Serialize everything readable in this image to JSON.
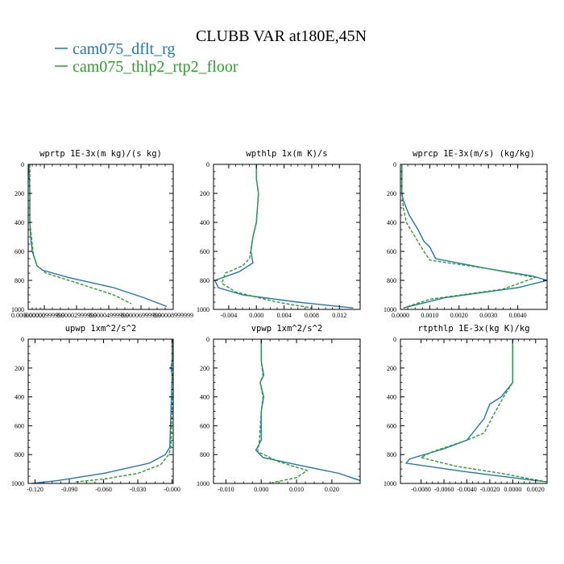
{
  "figure": {
    "title": "CLUBB VAR at180E,45N",
    "legend": [
      {
        "label": "cam075_dflt_rg",
        "color": "#1f77b4"
      },
      {
        "label": "cam075_thlp2_rtp2_floor",
        "color": "#2ca02c"
      }
    ]
  },
  "chart_data": [
    {
      "type": "line",
      "title": "wprtp  1E-3x(m kg)/(s kg)",
      "ylim": [
        1000,
        0
      ],
      "yticks": [
        "0",
        "200",
        "400",
        "600",
        "800",
        "1000"
      ],
      "xlim": [
        0,
        9e-05
      ],
      "xticks": [
        {
          "v": 0,
          "label": "0.000000000"
        },
        {
          "v": 1e-05,
          "label": "0.00000999999"
        },
        {
          "v": 3e-05,
          "label": "0.00002999999"
        },
        {
          "v": 5e-05,
          "label": "0.00004999999"
        },
        {
          "v": 7e-05,
          "label": "0.00006999999"
        },
        {
          "v": 9e-05,
          "label": "0.00008999999"
        }
      ],
      "series": [
        {
          "name": "cam075_dflt_rg",
          "style": "solid",
          "color": "#1f77b4",
          "x": [
            5e-07,
            1e-06,
            1e-06,
            1.5e-06,
            2.5e-06,
            4e-06,
            5.5e-06,
            9e-06,
            2.5e-05,
            5.3e-05,
            7.2e-05,
            8.6e-05
          ],
          "y": [
            0,
            200,
            400,
            500,
            600,
            650,
            700,
            730,
            780,
            850,
            920,
            980
          ]
        },
        {
          "name": "cam075_thlp2_rtp2_floor",
          "style": "dashed",
          "color": "#2ca02c",
          "x": [
            1e-06,
            1e-06,
            1e-06,
            2e-06,
            3e-06,
            4e-06,
            5.5e-06,
            1.1e-05,
            3.1e-05,
            5.3e-05,
            6.4e-05
          ],
          "y": [
            0,
            200,
            400,
            500,
            600,
            650,
            700,
            750,
            820,
            900,
            960
          ]
        }
      ]
    },
    {
      "type": "line",
      "title": "wpthlp  1x(m K)/s",
      "ylim": [
        1000,
        0
      ],
      "yticks": [
        "0",
        "200",
        "400",
        "600",
        "800",
        "1000"
      ],
      "xlim": [
        -0.0062,
        0.015
      ],
      "xticks": [
        {
          "v": -0.004,
          "label": "-0.004"
        },
        {
          "v": 0.0,
          "label": "0.000"
        },
        {
          "v": 0.004,
          "label": "0.004"
        },
        {
          "v": 0.008,
          "label": "0.008"
        },
        {
          "v": 0.012,
          "label": "0.012"
        }
      ],
      "series": [
        {
          "name": "cam075_dflt_rg",
          "style": "solid",
          "color": "#1f77b4",
          "x": [
            0.0,
            0.0,
            0.0003,
            0.0,
            -0.0005,
            -0.0008,
            -0.0005,
            -0.0025,
            -0.006,
            -0.0055,
            -0.002,
            0.006,
            0.014
          ],
          "y": [
            0,
            100,
            200,
            400,
            500,
            600,
            680,
            740,
            800,
            850,
            900,
            950,
            990
          ]
        },
        {
          "name": "cam075_thlp2_rtp2_floor",
          "style": "dashed",
          "color": "#2ca02c",
          "x": [
            0.0,
            0.0,
            0.0003,
            0.0,
            -0.0005,
            -0.001,
            -0.002,
            -0.0045,
            -0.005,
            -0.003,
            0.003,
            0.008
          ],
          "y": [
            0,
            100,
            200,
            400,
            500,
            650,
            700,
            750,
            820,
            880,
            950,
            990
          ]
        }
      ]
    },
    {
      "type": "line",
      "title": "wprcp  1E-3x(m/s) (kg/kg)",
      "ylim": [
        1000,
        0
      ],
      "yticks": [
        "0",
        "200",
        "400",
        "600",
        "800",
        "1000"
      ],
      "xlim": [
        0,
        0.005
      ],
      "xticks": [
        {
          "v": 0.0,
          "label": "0.0000"
        },
        {
          "v": 0.001,
          "label": "0.0010"
        },
        {
          "v": 0.002,
          "label": "0.0020"
        },
        {
          "v": 0.003,
          "label": "0.0030"
        },
        {
          "v": 0.004,
          "label": "0.0040"
        }
      ],
      "series": [
        {
          "name": "cam075_dflt_rg",
          "style": "solid",
          "color": "#1f77b4",
          "x": [
            5e-05,
            5e-05,
            0.0001,
            0.0003,
            0.0006,
            0.0008,
            0.001,
            0.0012,
            0.003,
            0.0045,
            0.005,
            0.004,
            0.0015,
            0.0001
          ],
          "y": [
            0,
            200,
            250,
            350,
            450,
            530,
            570,
            650,
            720,
            770,
            800,
            850,
            920,
            990
          ]
        },
        {
          "name": "cam075_thlp2_rtp2_floor",
          "style": "dashed",
          "color": "#2ca02c",
          "x": [
            5e-05,
            5e-05,
            0.0001,
            0.0002,
            0.0005,
            0.0008,
            0.001,
            0.003,
            0.0046,
            0.0035,
            0.001,
            0.0001
          ],
          "y": [
            0,
            200,
            300,
            400,
            500,
            600,
            660,
            720,
            780,
            860,
            930,
            990
          ]
        }
      ]
    },
    {
      "type": "line",
      "title": "upwp  1xm^2/s^2",
      "ylim": [
        1000,
        0
      ],
      "yticks": [
        "0",
        "200",
        "400",
        "600",
        "800",
        "1000"
      ],
      "xlim": [
        -0.126,
        0.001
      ],
      "xticks": [
        {
          "v": -0.12,
          "label": "-0.120"
        },
        {
          "v": -0.09,
          "label": "-0.090"
        },
        {
          "v": -0.06,
          "label": "-0.060"
        },
        {
          "v": -0.03,
          "label": "-0.030"
        },
        {
          "v": 0.0,
          "label": "-0.000"
        }
      ],
      "series": [
        {
          "name": "cam075_dflt_rg",
          "style": "solid",
          "color": "#1f77b4",
          "x": [
            0.0,
            0.0,
            -0.001,
            0.0,
            -0.001,
            -0.002,
            -0.006,
            -0.02,
            -0.06,
            -0.1,
            -0.123
          ],
          "y": [
            0,
            150,
            200,
            250,
            500,
            750,
            800,
            860,
            930,
            980,
            1000
          ]
        },
        {
          "name": "cam075_thlp2_rtp2_floor",
          "style": "dashed",
          "color": "#2ca02c",
          "x": [
            0.0,
            0.0,
            0.001,
            0.0,
            -0.001,
            -0.003,
            -0.01,
            -0.03,
            -0.06,
            -0.085
          ],
          "y": [
            0,
            200,
            300,
            500,
            750,
            800,
            870,
            930,
            970,
            990
          ]
        }
      ]
    },
    {
      "type": "line",
      "title": "vpwp  1xm^2/s^2",
      "ylim": [
        1000,
        0
      ],
      "yticks": [
        "0",
        "200",
        "400",
        "600",
        "800",
        "1000"
      ],
      "xlim": [
        -0.0135,
        0.028
      ],
      "xticks": [
        {
          "v": -0.01,
          "label": "-0.010"
        },
        {
          "v": 0.0,
          "label": "0.000"
        },
        {
          "v": 0.01,
          "label": "0.010"
        },
        {
          "v": 0.02,
          "label": "0.020"
        }
      ],
      "series": [
        {
          "name": "cam075_dflt_rg",
          "style": "solid",
          "color": "#1f77b4",
          "x": [
            0.0,
            0.0,
            0.0007,
            -0.0003,
            0.0007,
            0.0,
            0.0,
            -0.0015,
            0.0005,
            0.01,
            0.022,
            0.028
          ],
          "y": [
            0,
            150,
            250,
            300,
            400,
            500,
            700,
            770,
            820,
            870,
            930,
            980
          ]
        },
        {
          "name": "cam075_thlp2_rtp2_floor",
          "style": "dashed",
          "color": "#2ca02c",
          "x": [
            0.0,
            0.0,
            0.0005,
            -0.0003,
            0.0005,
            0.0,
            -0.0005,
            -0.001,
            0.005,
            0.013,
            0.01,
            0.003
          ],
          "y": [
            0,
            150,
            250,
            300,
            400,
            500,
            700,
            780,
            850,
            910,
            960,
            995
          ]
        }
      ]
    },
    {
      "type": "line",
      "title": "rtpthlp  1E-3x(kg K)/kg",
      "ylim": [
        1000,
        0
      ],
      "yticks": [
        "0",
        "200",
        "400",
        "600",
        "800",
        "1000"
      ],
      "xlim": [
        -0.0098,
        0.003
      ],
      "xticks": [
        {
          "v": -0.008,
          "label": "-0.0080"
        },
        {
          "v": -0.006,
          "label": "-0.0060"
        },
        {
          "v": -0.004,
          "label": "-0.0040"
        },
        {
          "v": -0.002,
          "label": "-0.0020"
        },
        {
          "v": 0.0,
          "label": "0.0000"
        },
        {
          "v": 0.002,
          "label": "0.0020"
        }
      ],
      "series": [
        {
          "name": "cam075_dflt_rg",
          "style": "solid",
          "color": "#1f77b4",
          "x": [
            0.0,
            0.0,
            -0.001,
            -0.002,
            -0.0025,
            -0.004,
            -0.006,
            -0.009,
            -0.0093,
            -0.004,
            0.003
          ],
          "y": [
            0,
            300,
            400,
            450,
            550,
            700,
            760,
            830,
            860,
            920,
            990
          ]
        },
        {
          "name": "cam075_thlp2_rtp2_floor",
          "style": "dashed",
          "color": "#2ca02c",
          "x": [
            0.0,
            0.0,
            -0.0008,
            -0.0015,
            -0.0025,
            -0.004,
            -0.007,
            -0.008,
            -0.005,
            -0.001,
            0.003
          ],
          "y": [
            0,
            300,
            400,
            500,
            650,
            700,
            780,
            820,
            880,
            930,
            990
          ]
        }
      ]
    }
  ]
}
